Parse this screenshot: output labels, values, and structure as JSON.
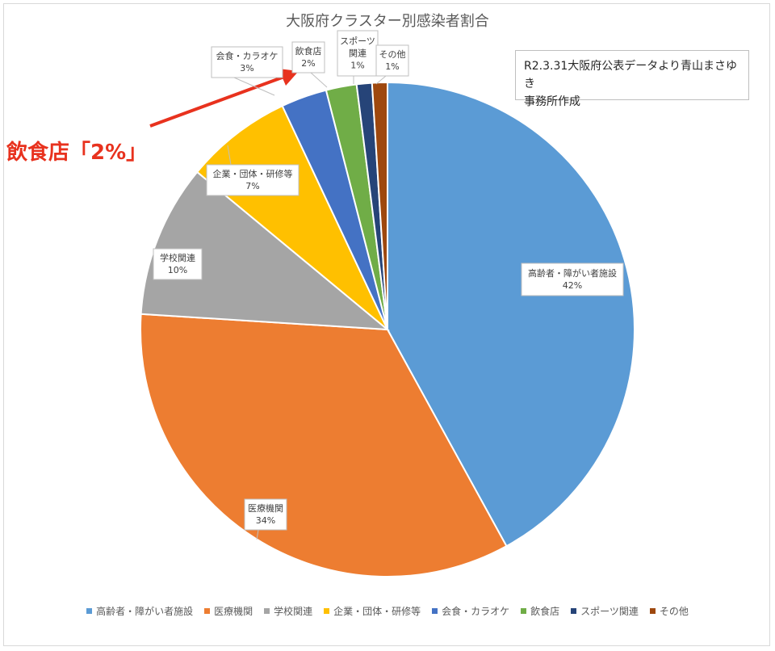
{
  "chart_data": {
    "type": "pie",
    "title": "大阪府クラスター別感染者割合",
    "categories": [
      "高齢者・障がい者施設",
      "医療機関",
      "学校関連",
      "企業・団体・研修等",
      "会食・カラオケ",
      "飲食店",
      "スポーツ関連",
      "その他"
    ],
    "values": [
      42,
      34,
      10,
      7,
      3,
      2,
      1,
      1
    ],
    "data_labels": [
      "42%",
      "34%",
      "10%",
      "7%",
      "3%",
      "2%",
      "1%",
      "1%"
    ],
    "colors": [
      "#5b9bd5",
      "#ed7d31",
      "#a5a5a5",
      "#ffc000",
      "#4472c4",
      "#70ad47",
      "#264478",
      "#9e480e"
    ],
    "legend_position": "bottom"
  },
  "note": "R2.3.31大阪府公表データより青山まさゆき\n事務所作成",
  "annotation": {
    "text": "飲食店「2%」",
    "color": "#e8321e"
  }
}
